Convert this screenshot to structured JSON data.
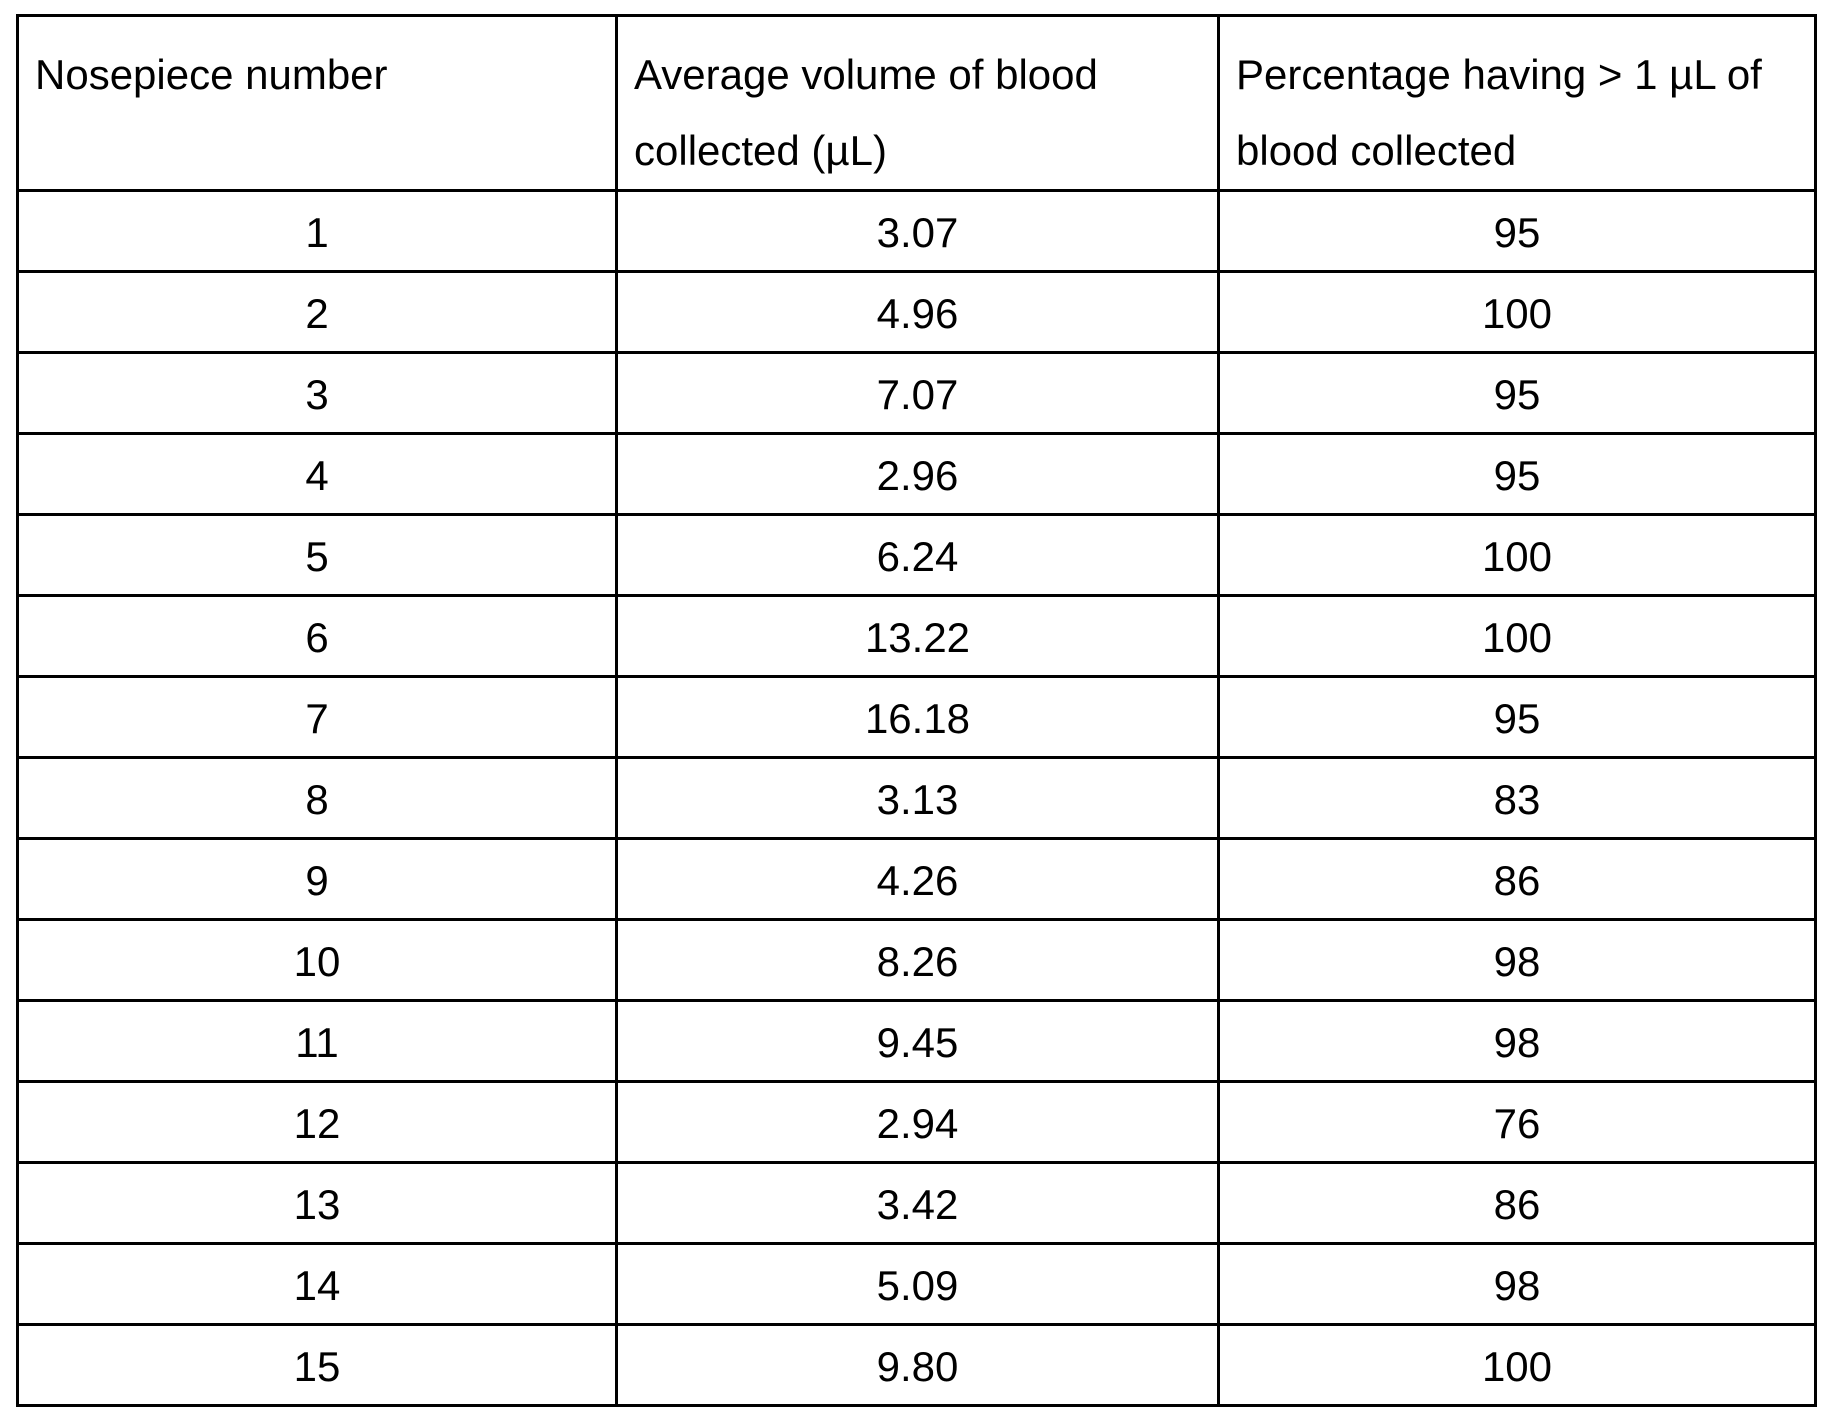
{
  "table": {
    "headers": [
      "Nosepiece number",
      "Average volume of blood collected (µL)",
      "Percentage having > 1 µL of blood collected"
    ],
    "rows": [
      [
        "1",
        "3.07",
        "95"
      ],
      [
        "2",
        "4.96",
        "100"
      ],
      [
        "3",
        "7.07",
        "95"
      ],
      [
        "4",
        "2.96",
        "95"
      ],
      [
        "5",
        "6.24",
        "100"
      ],
      [
        "6",
        "13.22",
        "100"
      ],
      [
        "7",
        "16.18",
        "95"
      ],
      [
        "8",
        "3.13",
        "83"
      ],
      [
        "9",
        "4.26",
        "86"
      ],
      [
        "10",
        "8.26",
        "98"
      ],
      [
        "11",
        "9.45",
        "98"
      ],
      [
        "12",
        "2.94",
        "76"
      ],
      [
        "13",
        "3.42",
        "86"
      ],
      [
        "14",
        "5.09",
        "98"
      ],
      [
        "15",
        "9.80",
        "100"
      ]
    ]
  }
}
